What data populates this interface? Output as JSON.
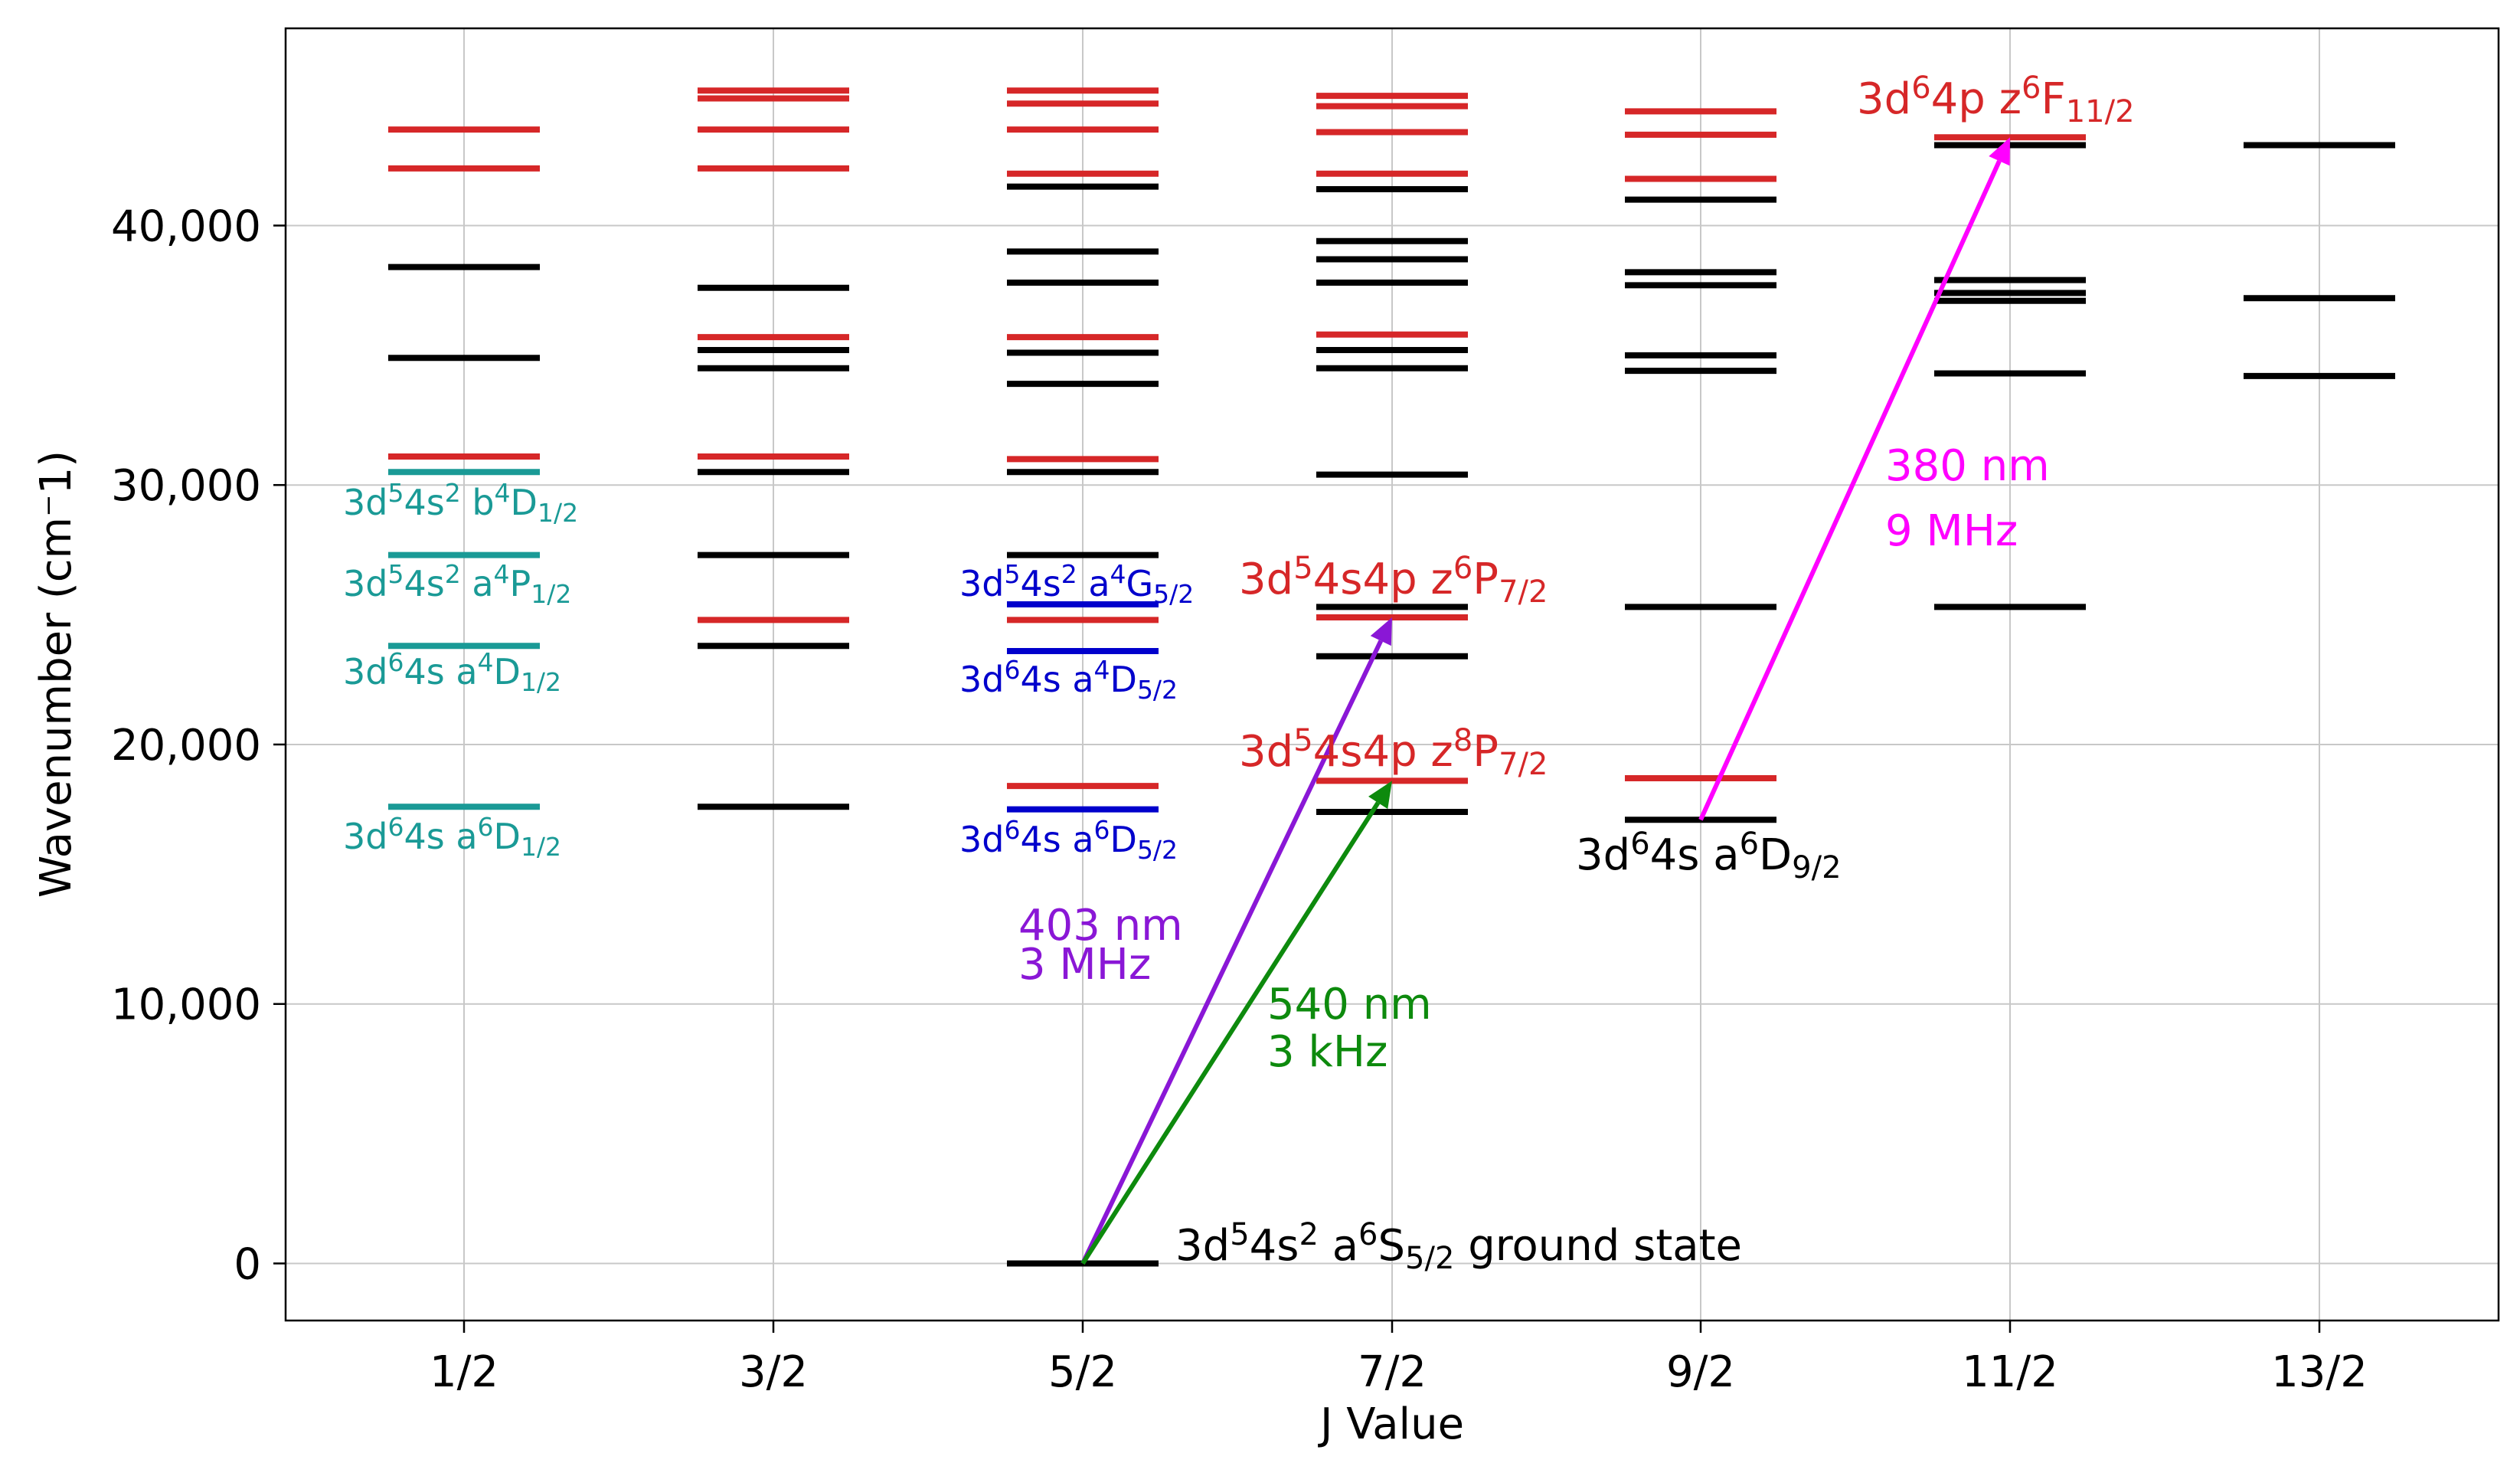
{
  "chart_data": {
    "type": "energy-level diagram",
    "xlabel": "J Value",
    "ylabel": "Wavenumber (cm⁻1)",
    "categories": [
      "1/2",
      "3/2",
      "5/2",
      "7/2",
      "9/2",
      "11/2",
      "13/2"
    ],
    "ylim": [
      -2200,
      47600
    ],
    "yticks": [
      0,
      10000,
      20000,
      30000,
      40000
    ],
    "ytick_labels": [
      "0",
      "10,000",
      "20,000",
      "30,000",
      "40,000"
    ],
    "grid": true,
    "colors": {
      "even_parity": "#000000",
      "odd_parity": "#d62728",
      "teal_labels": "#1a9a96",
      "blue_labels": "#0000cc",
      "violet_transition": "#8a17d6",
      "green_transition": "#0d8a0d",
      "magenta_transition": "#ff00ff"
    },
    "levels": [
      {
        "j": "1/2",
        "color": "#d62728",
        "values": [
          43700,
          42200,
          31100
        ]
      },
      {
        "j": "1/2",
        "color": "#000000",
        "values": [
          38400,
          34900
        ]
      },
      {
        "j": "1/2",
        "color": "#1a9a96",
        "values": [
          30500,
          27300,
          23800,
          17600
        ]
      },
      {
        "j": "3/2",
        "color": "#d62728",
        "values": [
          45200,
          44900,
          43700,
          42200,
          35700,
          31100,
          24800
        ]
      },
      {
        "j": "3/2",
        "color": "#000000",
        "values": [
          37600,
          35200,
          34500,
          30500,
          27300,
          23800,
          17600
        ]
      },
      {
        "j": "5/2",
        "color": "#d62728",
        "values": [
          45200,
          44700,
          43700,
          42000,
          35700,
          31000,
          24800,
          18400
        ]
      },
      {
        "j": "5/2",
        "color": "#000000",
        "values": [
          41500,
          39000,
          37800,
          35100,
          33900,
          30500,
          27300,
          0
        ]
      },
      {
        "j": "5/2",
        "color": "#0000cc",
        "values": [
          25400,
          23600,
          17500
        ]
      },
      {
        "j": "7/2",
        "color": "#d62728",
        "values": [
          45000,
          44600,
          43600,
          42000,
          35800,
          24900,
          18600
        ]
      },
      {
        "j": "7/2",
        "color": "#000000",
        "values": [
          41400,
          39400,
          38700,
          37800,
          35200,
          34500,
          30400,
          25300,
          23400,
          17400
        ]
      },
      {
        "j": "9/2",
        "color": "#d62728",
        "values": [
          44400,
          43500,
          41800,
          18700
        ]
      },
      {
        "j": "9/2",
        "color": "#000000",
        "values": [
          41000,
          38200,
          37700,
          35000,
          34400,
          25300,
          17100
        ]
      },
      {
        "j": "11/2",
        "color": "#d62728",
        "values": [
          43400
        ]
      },
      {
        "j": "11/2",
        "color": "#000000",
        "values": [
          43100,
          37900,
          37400,
          37100,
          34300,
          25300
        ]
      },
      {
        "j": "13/2",
        "color": "#000000",
        "values": [
          43100,
          37200,
          34200
        ]
      }
    ],
    "transitions": [
      {
        "from_j": "5/2",
        "from_value": 0,
        "to_j": "7/2",
        "to_value": 24900,
        "color": "#8a17d6",
        "wavelength": "403 nm",
        "linewidth": "3 MHz"
      },
      {
        "from_j": "5/2",
        "from_value": 0,
        "to_j": "7/2",
        "to_value": 18600,
        "color": "#0d8a0d",
        "wavelength": "540 nm",
        "linewidth": "3 kHz"
      },
      {
        "from_j": "9/2",
        "from_value": 17100,
        "to_j": "11/2",
        "to_value": 43400,
        "color": "#ff00ff",
        "wavelength": "380 nm",
        "linewidth": "9 MHz"
      }
    ],
    "annotations": [
      {
        "name": "label-b4d-half",
        "color": "#1a9a96",
        "size": "small",
        "parts": [
          [
            "n",
            "3d"
          ],
          [
            "sup",
            "5"
          ],
          [
            "n",
            "4s"
          ],
          [
            "sup",
            "2"
          ],
          [
            "n",
            " b"
          ],
          [
            "sup",
            "4"
          ],
          [
            "n",
            "D"
          ],
          [
            "sub",
            "1/2"
          ]
        ]
      },
      {
        "name": "label-a4p-half",
        "color": "#1a9a96",
        "size": "small",
        "parts": [
          [
            "n",
            "3d"
          ],
          [
            "sup",
            "5"
          ],
          [
            "n",
            "4s"
          ],
          [
            "sup",
            "2"
          ],
          [
            "n",
            " a"
          ],
          [
            "sup",
            "4"
          ],
          [
            "n",
            "P"
          ],
          [
            "sub",
            "1/2"
          ]
        ]
      },
      {
        "name": "label-a4d-half",
        "color": "#1a9a96",
        "size": "small",
        "parts": [
          [
            "n",
            "3d"
          ],
          [
            "sup",
            "6"
          ],
          [
            "n",
            "4s a"
          ],
          [
            "sup",
            "4"
          ],
          [
            "n",
            "D"
          ],
          [
            "sub",
            "1/2"
          ]
        ]
      },
      {
        "name": "label-a6d-half",
        "color": "#1a9a96",
        "size": "small",
        "parts": [
          [
            "n",
            "3d"
          ],
          [
            "sup",
            "6"
          ],
          [
            "n",
            "4s a"
          ],
          [
            "sup",
            "6"
          ],
          [
            "n",
            "D"
          ],
          [
            "sub",
            "1/2"
          ]
        ]
      },
      {
        "name": "label-a4g-five-half",
        "color": "#0000cc",
        "size": "small",
        "parts": [
          [
            "n",
            "3d"
          ],
          [
            "sup",
            "5"
          ],
          [
            "n",
            "4s"
          ],
          [
            "sup",
            "2"
          ],
          [
            "n",
            " a"
          ],
          [
            "sup",
            "4"
          ],
          [
            "n",
            "G"
          ],
          [
            "sub",
            "5/2"
          ]
        ]
      },
      {
        "name": "label-a4d-five-half",
        "color": "#0000cc",
        "size": "small",
        "parts": [
          [
            "n",
            "3d"
          ],
          [
            "sup",
            "6"
          ],
          [
            "n",
            "4s a"
          ],
          [
            "sup",
            "4"
          ],
          [
            "n",
            "D"
          ],
          [
            "sub",
            "5/2"
          ]
        ]
      },
      {
        "name": "label-a6d-five-half",
        "color": "#0000cc",
        "size": "small",
        "parts": [
          [
            "n",
            "3d"
          ],
          [
            "sup",
            "6"
          ],
          [
            "n",
            "4s a"
          ],
          [
            "sup",
            "6"
          ],
          [
            "n",
            "D"
          ],
          [
            "sub",
            "5/2"
          ]
        ]
      },
      {
        "name": "label-z6p-seven-half",
        "color": "#d62728",
        "size": "large",
        "parts": [
          [
            "n",
            "3d"
          ],
          [
            "sup",
            "5"
          ],
          [
            "n",
            "4s4p z"
          ],
          [
            "sup",
            "6"
          ],
          [
            "n",
            "P"
          ],
          [
            "sub",
            "7/2"
          ]
        ]
      },
      {
        "name": "label-z8p-seven-half",
        "color": "#d62728",
        "size": "large",
        "parts": [
          [
            "n",
            "3d"
          ],
          [
            "sup",
            "5"
          ],
          [
            "n",
            "4s4p z"
          ],
          [
            "sup",
            "8"
          ],
          [
            "n",
            "P"
          ],
          [
            "sub",
            "7/2"
          ]
        ]
      },
      {
        "name": "label-z6f-eleven-half",
        "color": "#d62728",
        "size": "large",
        "parts": [
          [
            "n",
            "3d"
          ],
          [
            "sup",
            "6"
          ],
          [
            "n",
            "4p z"
          ],
          [
            "sup",
            "6"
          ],
          [
            "n",
            "F"
          ],
          [
            "sub",
            "11/2"
          ]
        ]
      },
      {
        "name": "label-a6d-nine-half",
        "color": "#000000",
        "size": "large",
        "parts": [
          [
            "n",
            "3d"
          ],
          [
            "sup",
            "6"
          ],
          [
            "n",
            "4s a"
          ],
          [
            "sup",
            "6"
          ],
          [
            "n",
            "D"
          ],
          [
            "sub",
            "9/2"
          ]
        ]
      },
      {
        "name": "label-ground-state",
        "color": "#000000",
        "size": "large",
        "parts": [
          [
            "n",
            "3d"
          ],
          [
            "sup",
            "5"
          ],
          [
            "n",
            "4s"
          ],
          [
            "sup",
            "2"
          ],
          [
            "n",
            " a"
          ],
          [
            "sup",
            "6"
          ],
          [
            "n",
            "S"
          ],
          [
            "sub",
            "5/2"
          ],
          [
            "n",
            " ground state"
          ]
        ]
      },
      {
        "name": "label-403nm",
        "color": "#8a17d6",
        "size": "large",
        "parts": [
          [
            "n",
            "403 nm"
          ]
        ]
      },
      {
        "name": "label-3mhz",
        "color": "#8a17d6",
        "size": "large",
        "parts": [
          [
            "n",
            "3 MHz"
          ]
        ]
      },
      {
        "name": "label-540nm",
        "color": "#0d8a0d",
        "size": "large",
        "parts": [
          [
            "n",
            "540 nm"
          ]
        ]
      },
      {
        "name": "label-3khz",
        "color": "#0d8a0d",
        "size": "large",
        "parts": [
          [
            "n",
            "3 kHz"
          ]
        ]
      },
      {
        "name": "label-380nm",
        "color": "#ff00ff",
        "size": "large",
        "parts": [
          [
            "n",
            "380 nm"
          ]
        ]
      },
      {
        "name": "label-9mhz",
        "color": "#ff00ff",
        "size": "large",
        "parts": [
          [
            "n",
            "9 MHz"
          ]
        ]
      }
    ]
  }
}
